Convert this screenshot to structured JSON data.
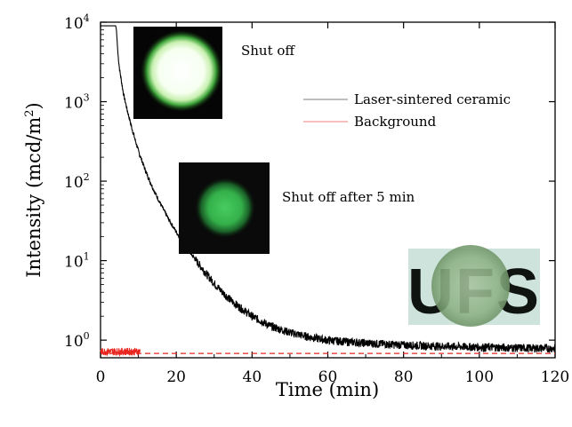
{
  "chart_data": {
    "type": "line",
    "xlabel": "Time (min)",
    "ylabel": "Intensity (mcd/m",
    "ylabel_sup": "2",
    "ylabel_close": ")",
    "xlim": [
      0,
      120
    ],
    "ylim": [
      0.6,
      10000
    ],
    "yscale": "log",
    "grid": false,
    "legend_placement": "right, upper-middle",
    "x_ticks": [
      0,
      20,
      40,
      60,
      80,
      100,
      120
    ],
    "y_ticks": [
      {
        "value": 1,
        "base": "10",
        "exp": "0"
      },
      {
        "value": 10,
        "base": "10",
        "exp": "1"
      },
      {
        "value": 100,
        "base": "10",
        "exp": "2"
      },
      {
        "value": 1000,
        "base": "10",
        "exp": "3"
      },
      {
        "value": 10000,
        "base": "10",
        "exp": "4"
      }
    ],
    "series": [
      {
        "name": "Laser-sintered ceramic",
        "color": "#000000",
        "x": [
          0,
          0.5,
          4.0,
          4.2,
          4.6,
          5,
          6,
          7,
          8,
          9,
          10,
          12,
          14,
          16,
          18,
          20,
          22,
          24,
          26,
          28,
          30,
          32,
          35,
          40,
          45,
          50,
          55,
          60,
          70,
          80,
          90,
          100,
          110,
          120
        ],
        "y": [
          9000,
          9000,
          9000,
          8000,
          4000,
          2600,
          1300,
          800,
          520,
          350,
          240,
          130,
          78,
          50,
          33,
          23,
          16.5,
          12,
          9.0,
          6.8,
          5.2,
          4.1,
          3.0,
          2.0,
          1.5,
          1.25,
          1.1,
          1.0,
          0.92,
          0.87,
          0.84,
          0.82,
          0.8,
          0.79
        ]
      },
      {
        "name": "Background",
        "color": "#e8261f",
        "x": [
          0,
          10.5
        ],
        "y": [
          0.72,
          0.72
        ],
        "baseline_y": 0.68
      }
    ],
    "annotations": [
      "Shut off",
      "Shut off after 5 min"
    ],
    "inset_logo_text": "UFS"
  }
}
